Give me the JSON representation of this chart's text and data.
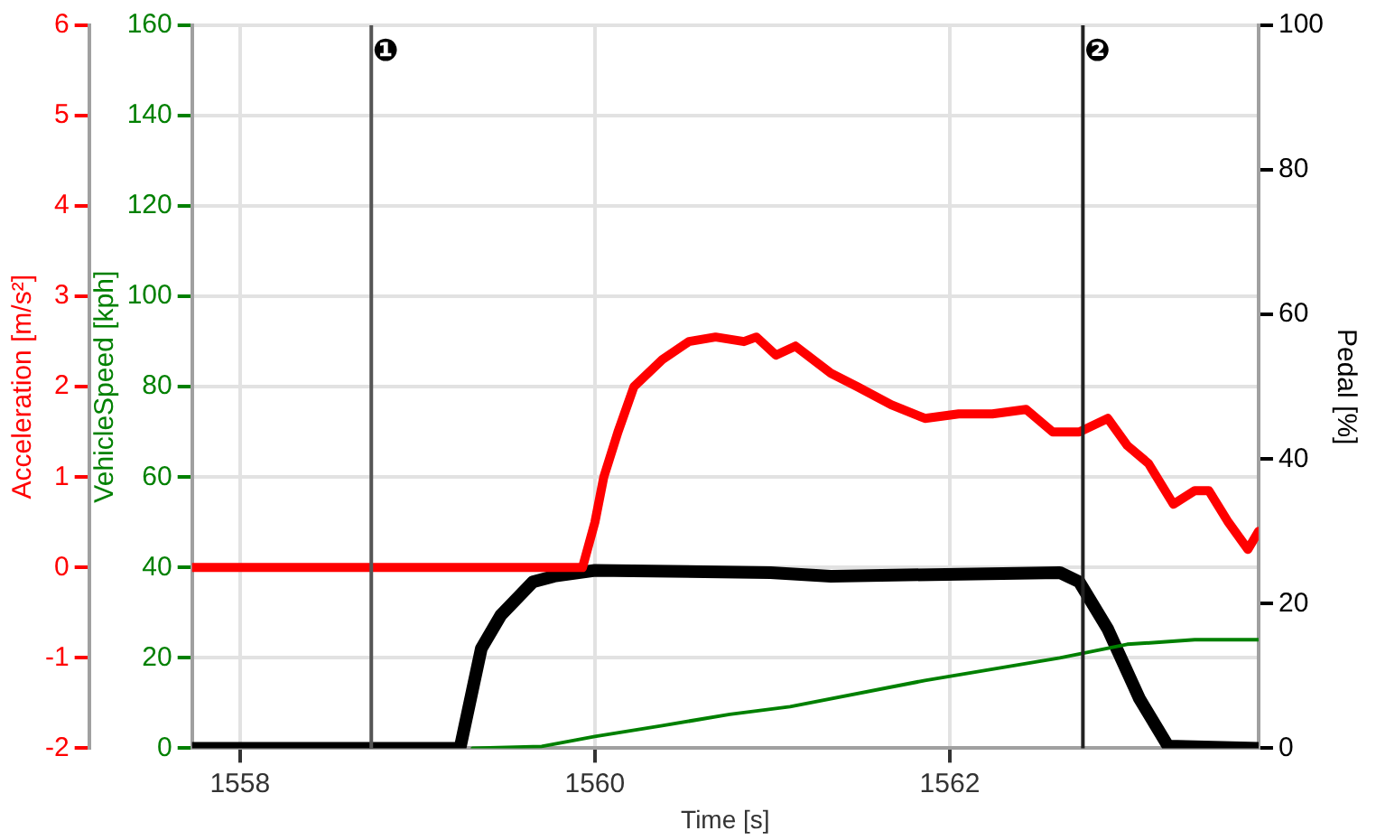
{
  "chart_data": {
    "type": "line",
    "xlabel": "Time [s]",
    "ylabel": "VehicleSpeed [kph]",
    "y2label": "Pedal [%]",
    "y3label": "Acceleration [m/s²]",
    "xlim": [
      1557.73,
      1563.74
    ],
    "xticks": [
      1558,
      1560,
      1562
    ],
    "ylim": [
      0,
      160
    ],
    "yticks": [
      0,
      20,
      40,
      60,
      80,
      100,
      120,
      140,
      160
    ],
    "y2lim": [
      0,
      100
    ],
    "y2ticks": [
      0,
      20,
      40,
      60,
      80,
      100
    ],
    "y3lim": [
      -2,
      6
    ],
    "y3ticks": [
      -2,
      -1,
      0,
      1,
      2,
      3,
      4,
      5,
      6
    ],
    "grid": true,
    "legend": false,
    "series": [
      {
        "axis": "y3",
        "color": "#ff0000",
        "x": [
          1557.73,
          1559.93,
          1560.0,
          1560.05,
          1560.13,
          1560.22,
          1560.38,
          1560.53,
          1560.68,
          1560.84,
          1560.91,
          1561.02,
          1561.13,
          1561.33,
          1561.48,
          1561.67,
          1561.86,
          1562.05,
          1562.24,
          1562.43,
          1562.58,
          1562.73,
          1562.89,
          1563.0,
          1563.12,
          1563.26,
          1563.38,
          1563.46,
          1563.57,
          1563.68,
          1563.74
        ],
        "values": [
          0,
          0,
          0.5,
          1.0,
          1.5,
          2.0,
          2.3,
          2.5,
          2.55,
          2.5,
          2.55,
          2.35,
          2.45,
          2.15,
          2.0,
          1.8,
          1.65,
          1.7,
          1.7,
          1.75,
          1.5,
          1.5,
          1.65,
          1.35,
          1.15,
          0.7,
          0.85,
          0.85,
          0.5,
          0.2,
          0.4
        ]
      },
      {
        "axis": "y",
        "color": "#008000",
        "x": [
          1559.31,
          1559.7,
          1560.0,
          1560.38,
          1560.76,
          1561.1,
          1561.86,
          1562.62,
          1563.0,
          1563.38,
          1563.74
        ],
        "values": [
          0,
          0.4,
          2.6,
          5,
          7.5,
          9.2,
          15,
          20,
          23,
          24,
          24
        ]
      },
      {
        "axis": "y2",
        "color": "#000000",
        "x": [
          1557.73,
          1559.24,
          1559.36,
          1559.47,
          1559.65,
          1559.77,
          1560.0,
          1560.99,
          1561.33,
          1562.62,
          1562.73,
          1562.89,
          1563.07,
          1563.23,
          1563.74
        ],
        "values": [
          0,
          0,
          13.8,
          18.4,
          23,
          23.8,
          24.6,
          24.3,
          23.8,
          24.3,
          23,
          16.5,
          6.8,
          0.3,
          0
        ]
      }
    ],
    "ref_lines": [
      {
        "axis": "x",
        "value": 1558.74,
        "label": "❶",
        "color": "#555555"
      },
      {
        "axis": "x",
        "value": 1562.75,
        "label": "❷",
        "color": "#222222"
      }
    ]
  }
}
